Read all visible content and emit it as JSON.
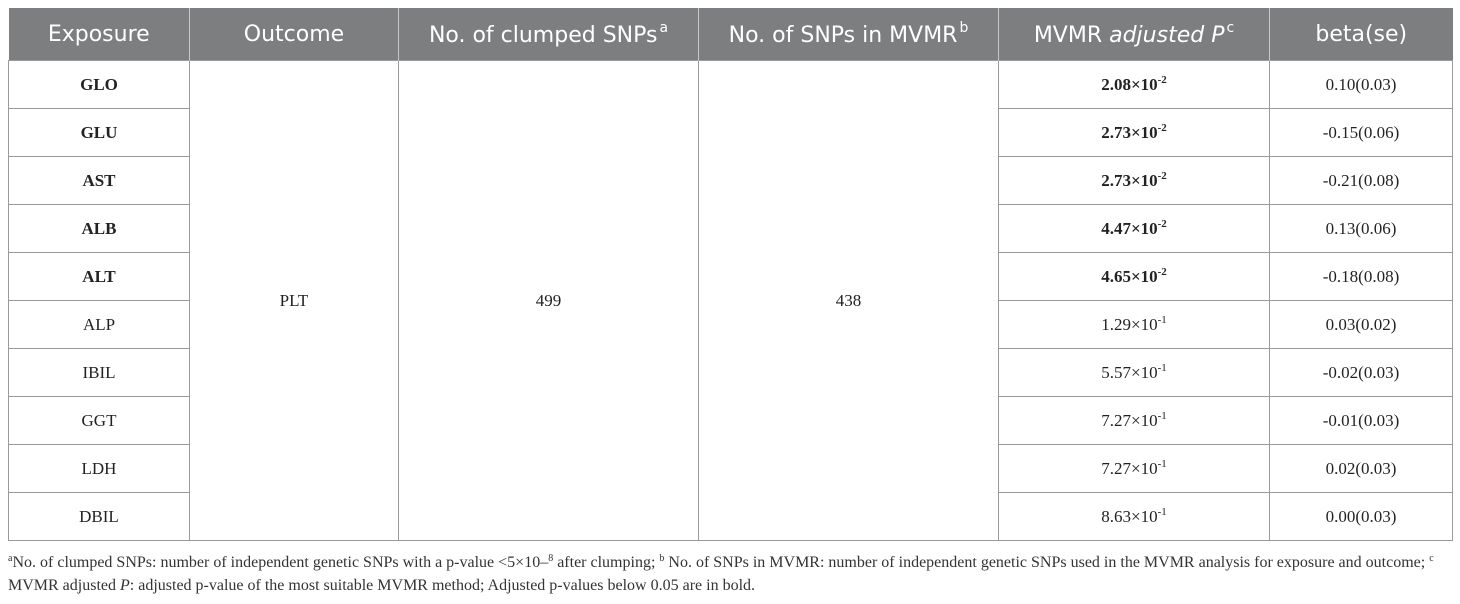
{
  "table": {
    "headers": [
      {
        "text": "Exposure",
        "sup": "",
        "italic": ""
      },
      {
        "text": "Outcome",
        "sup": "",
        "italic": ""
      },
      {
        "text": "No. of clumped SNPs",
        "sup": "a",
        "italic": ""
      },
      {
        "text": "No. of SNPs in MVMR",
        "sup": "b",
        "italic": ""
      },
      {
        "text": "MVMR ",
        "sup": "c",
        "italic": "adjusted P"
      },
      {
        "text": "beta(se)",
        "sup": "",
        "italic": ""
      }
    ],
    "outcome": "PLT",
    "clumped_snps": "499",
    "snps_in_mvmr": "438",
    "rows": [
      {
        "exposure": "GLO",
        "p_mantissa": "2.08×10",
        "p_exp": "-2",
        "beta": "0.10(0.03)",
        "bold": true
      },
      {
        "exposure": "GLU",
        "p_mantissa": "2.73×10",
        "p_exp": "-2",
        "beta": "-0.15(0.06)",
        "bold": true
      },
      {
        "exposure": "AST",
        "p_mantissa": "2.73×10",
        "p_exp": "-2",
        "beta": "-0.21(0.08)",
        "bold": true
      },
      {
        "exposure": "ALB",
        "p_mantissa": "4.47×10",
        "p_exp": "-2",
        "beta": "0.13(0.06)",
        "bold": true
      },
      {
        "exposure": "ALT",
        "p_mantissa": "4.65×10",
        "p_exp": "-2",
        "beta": "-0.18(0.08)",
        "bold": true
      },
      {
        "exposure": "ALP",
        "p_mantissa": "1.29×10",
        "p_exp": "-1",
        "beta": "0.03(0.02)",
        "bold": false
      },
      {
        "exposure": "IBIL",
        "p_mantissa": "5.57×10",
        "p_exp": "-1",
        "beta": "-0.02(0.03)",
        "bold": false
      },
      {
        "exposure": "GGT",
        "p_mantissa": "7.27×10",
        "p_exp": "-1",
        "beta": "-0.01(0.03)",
        "bold": false
      },
      {
        "exposure": "LDH",
        "p_mantissa": "7.27×10",
        "p_exp": "-1",
        "beta": "0.02(0.03)",
        "bold": false
      },
      {
        "exposure": "DBIL",
        "p_mantissa": "8.63×10",
        "p_exp": "-1",
        "beta": "0.00(0.03)",
        "bold": false
      }
    ]
  },
  "footnote": {
    "a_mark": "a",
    "a_text": "No. of clumped SNPs: number of independent genetic SNPs with a p-value <5×10–",
    "a_exp": "8",
    "a_after": " after clumping; ",
    "b_mark": "b",
    "b_text": " No. of SNPs in MVMR: number of independent genetic SNPs used in the MVMR analysis for exposure and outcome; ",
    "c_mark": "c",
    "c_text1": " MVMR adjusted ",
    "c_italic": "P",
    "c_text2": ": adjusted p-value of the most suitable MVMR method; Adjusted p-values below 0.05 are in bold."
  }
}
